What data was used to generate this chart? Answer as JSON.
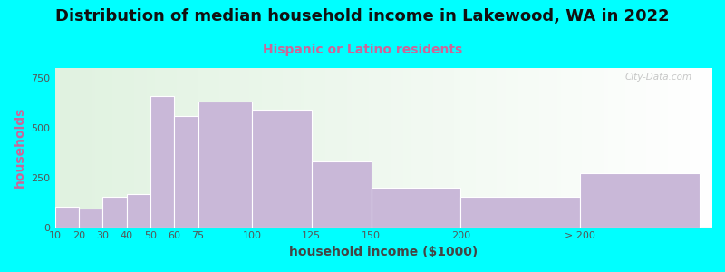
{
  "title": "Distribution of median household income in Lakewood, WA in 2022",
  "subtitle": "Hispanic or Latino residents",
  "xlabel": "household income ($1000)",
  "ylabel": "households",
  "bar_color": "#c9b8d8",
  "bar_edgecolor": "#ffffff",
  "background_color": "#00ffff",
  "categories": [
    "10",
    "20",
    "30",
    "40",
    "50",
    "60",
    "75",
    "100",
    "125",
    "150",
    "200",
    "> 200"
  ],
  "bin_edges": [
    5,
    15,
    25,
    35,
    45,
    55,
    65,
    87.5,
    112.5,
    137.5,
    175,
    225,
    275
  ],
  "values": [
    105,
    95,
    155,
    165,
    660,
    560,
    630,
    590,
    330,
    200,
    155,
    270
  ],
  "ylim": [
    0,
    800
  ],
  "yticks": [
    0,
    250,
    500,
    750
  ],
  "title_fontsize": 13,
  "subtitle_fontsize": 10,
  "axis_label_fontsize": 10,
  "tick_fontsize": 8,
  "watermark_text": "City-Data.com",
  "subtitle_color": "#cc6699",
  "ylabel_color": "#cc6699",
  "xlabel_color": "#444444",
  "title_color": "#111111",
  "grid_color": "#dddddd",
  "tick_color": "#555555"
}
